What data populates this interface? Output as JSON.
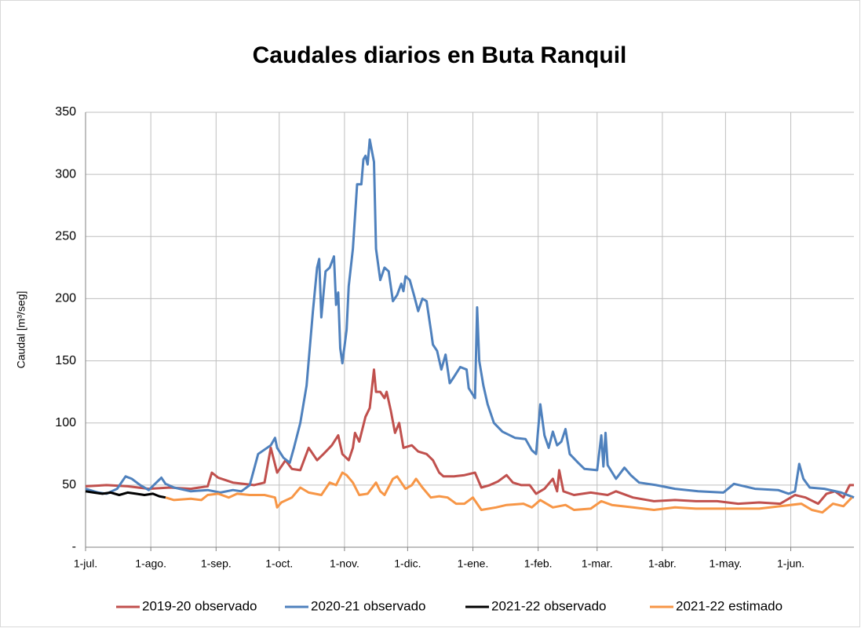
{
  "chart_data": {
    "type": "line",
    "title": "Caudales diarios en Buta Ranquil",
    "ylabel": "Caudal [m³/seg]",
    "xlim": [
      0,
      365
    ],
    "ylim": [
      0,
      350
    ],
    "xticks": [
      {
        "value": 0,
        "label": "1-jul."
      },
      {
        "value": 31,
        "label": "1-ago."
      },
      {
        "value": 62,
        "label": "1-sep."
      },
      {
        "value": 92,
        "label": "1-oct."
      },
      {
        "value": 123,
        "label": "1-nov."
      },
      {
        "value": 153,
        "label": "1-dic."
      },
      {
        "value": 184,
        "label": "1-ene."
      },
      {
        "value": 215,
        "label": "1-feb."
      },
      {
        "value": 243,
        "label": "1-mar."
      },
      {
        "value": 274,
        "label": "1-abr."
      },
      {
        "value": 304,
        "label": "1-may."
      },
      {
        "value": 335,
        "label": "1-jun."
      }
    ],
    "yticks": [
      {
        "value": 0,
        "label": "-"
      },
      50,
      100,
      150,
      200,
      250,
      300,
      350
    ],
    "grid": true,
    "legend": "bottom",
    "series": [
      {
        "name": "2019-20 observado",
        "color": "#c0504d",
        "x": [
          0,
          10,
          20,
          30,
          40,
          50,
          58,
          60,
          63,
          70,
          80,
          85,
          88,
          91,
          95,
          98,
          102,
          106,
          110,
          113,
          117,
          120,
          122,
          125,
          127,
          128,
          130,
          133,
          135,
          137,
          138,
          140,
          142,
          143,
          145,
          147,
          149,
          151,
          155,
          158,
          162,
          165,
          168,
          170,
          175,
          180,
          185,
          188,
          192,
          196,
          200,
          203,
          207,
          211,
          214,
          218,
          222,
          224,
          225,
          227,
          232,
          240,
          248,
          252,
          260,
          270,
          280,
          290,
          300,
          310,
          320,
          330,
          337,
          342,
          348,
          352,
          356,
          360,
          363,
          365
        ],
        "values": [
          49,
          50,
          49,
          47,
          48,
          47,
          49,
          60,
          56,
          52,
          50,
          52,
          80,
          60,
          70,
          63,
          62,
          80,
          70,
          75,
          82,
          90,
          75,
          70,
          80,
          92,
          85,
          105,
          112,
          143,
          125,
          125,
          120,
          125,
          110,
          92,
          100,
          80,
          82,
          77,
          75,
          70,
          60,
          57,
          57,
          58,
          60,
          48,
          50,
          53,
          58,
          52,
          50,
          50,
          43,
          47,
          55,
          45,
          62,
          45,
          42,
          44,
          42,
          45,
          40,
          37,
          38,
          37,
          37,
          35,
          36,
          35,
          42,
          40,
          35,
          43,
          45,
          40,
          50,
          50
        ]
      },
      {
        "name": "2020-21 observado",
        "color": "#4f81bd",
        "x": [
          0,
          6,
          10,
          15,
          19,
          22,
          26,
          30,
          36,
          38,
          42,
          50,
          58,
          64,
          70,
          74,
          78,
          82,
          88,
          90,
          91,
          94,
          97,
          99,
          102,
          105,
          108,
          110,
          111,
          112,
          114,
          116,
          118,
          119,
          120,
          121,
          122,
          124,
          125,
          127,
          129,
          131,
          132,
          133,
          134,
          135,
          137,
          138,
          140,
          142,
          144,
          146,
          148,
          150,
          151,
          152,
          154,
          156,
          158,
          160,
          162,
          164,
          165,
          167,
          169,
          171,
          173,
          175,
          178,
          181,
          182,
          185,
          186,
          187,
          189,
          191,
          194,
          198,
          204,
          209,
          212,
          214,
          216,
          218,
          220,
          222,
          224,
          226,
          228,
          230,
          234,
          237,
          243,
          245,
          246,
          247,
          248,
          252,
          256,
          259,
          263,
          271,
          280,
          291,
          303,
          308,
          318,
          329,
          334,
          337,
          339,
          341,
          344,
          351,
          359,
          365
        ],
        "values": [
          47,
          44,
          43,
          47,
          57,
          55,
          50,
          46,
          56,
          51,
          48,
          45,
          46,
          44,
          46,
          45,
          50,
          75,
          82,
          88,
          80,
          72,
          68,
          80,
          100,
          130,
          190,
          225,
          232,
          185,
          222,
          225,
          234,
          195,
          205,
          160,
          148,
          175,
          210,
          240,
          292,
          292,
          312,
          315,
          308,
          328,
          310,
          240,
          215,
          225,
          222,
          198,
          203,
          212,
          206,
          218,
          215,
          203,
          190,
          200,
          198,
          175,
          163,
          158,
          143,
          155,
          132,
          137,
          145,
          143,
          128,
          120,
          193,
          150,
          130,
          115,
          100,
          93,
          88,
          87,
          78,
          75,
          115,
          90,
          80,
          93,
          82,
          85,
          95,
          75,
          68,
          63,
          62,
          90,
          65,
          92,
          66,
          55,
          64,
          58,
          52,
          50,
          47,
          45,
          44,
          51,
          47,
          46,
          43,
          45,
          67,
          55,
          48,
          47,
          44,
          40
        ]
      },
      {
        "name": "2021-22 observado",
        "color": "#000000",
        "x": [
          0,
          4,
          8,
          12,
          16,
          20,
          24,
          28,
          32,
          35,
          38
        ],
        "values": [
          45,
          44,
          43,
          44,
          42,
          44,
          43,
          42,
          43,
          41,
          40
        ]
      },
      {
        "name": "2021-22 estimado",
        "color": "#f79646",
        "x": [
          38,
          42,
          50,
          55,
          58,
          63,
          68,
          72,
          78,
          85,
          90,
          91,
          93,
          98,
          102,
          106,
          112,
          116,
          119,
          122,
          124,
          127,
          130,
          134,
          138,
          140,
          142,
          146,
          148,
          152,
          155,
          157,
          160,
          164,
          168,
          172,
          176,
          180,
          184,
          188,
          195,
          200,
          208,
          212,
          216,
          222,
          228,
          232,
          240,
          245,
          250,
          260,
          270,
          280,
          290,
          300,
          310,
          320,
          330,
          340,
          345,
          350,
          355,
          360,
          364
        ],
        "values": [
          40,
          38,
          39,
          38,
          42,
          43,
          40,
          43,
          42,
          42,
          40,
          32,
          36,
          40,
          48,
          44,
          42,
          52,
          50,
          60,
          58,
          52,
          42,
          43,
          52,
          45,
          42,
          55,
          57,
          47,
          50,
          55,
          48,
          40,
          41,
          40,
          35,
          35,
          40,
          30,
          32,
          34,
          35,
          32,
          38,
          32,
          34,
          30,
          31,
          37,
          34,
          32,
          30,
          32,
          31,
          31,
          31,
          31,
          33,
          35,
          30,
          28,
          35,
          33,
          40
        ]
      }
    ]
  }
}
